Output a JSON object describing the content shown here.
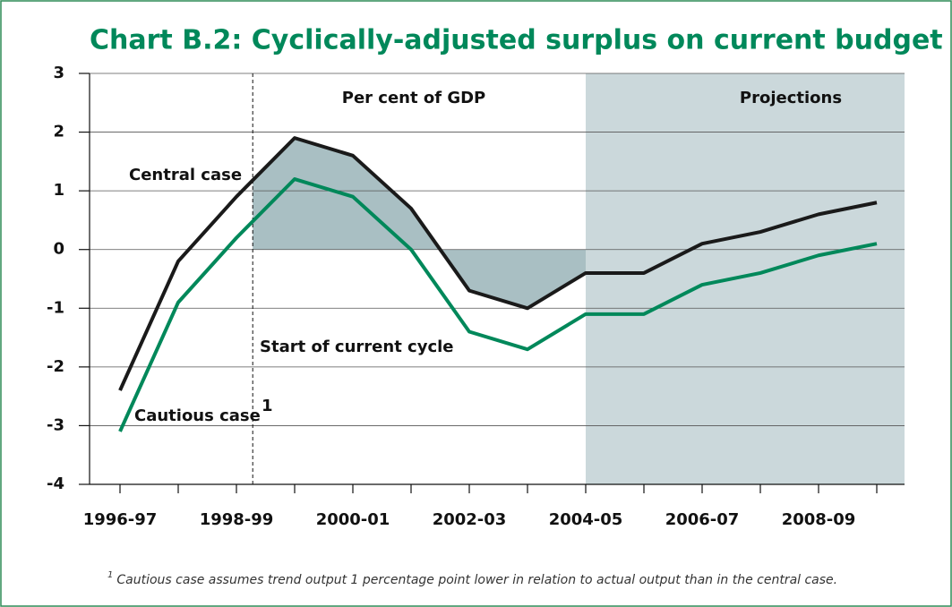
{
  "chart_data": {
    "type": "line",
    "title": "Chart B.2: Cyclically-adjusted surplus on current budget",
    "subtitle": "Per cent of GDP",
    "annotations": {
      "projections": "Projections",
      "cycle": "Start of current cycle",
      "cautious_marker": "1"
    },
    "categories": [
      "1996-97",
      null,
      "1998-99",
      null,
      "2000-01",
      null,
      "2002-03",
      null,
      "2004-05",
      null,
      "2006-07",
      null,
      "2008-09",
      null
    ],
    "series": [
      {
        "name": "Central case",
        "color": "#1a1a1a",
        "values": [
          -2.4,
          -0.2,
          0.9,
          1.9,
          1.6,
          0.7,
          -0.7,
          -1.0,
          -0.4,
          -0.4,
          0.1,
          0.3,
          0.6,
          0.8
        ]
      },
      {
        "name": "Cautious case",
        "color": "#00885a",
        "values": [
          -3.1,
          -0.9,
          0.2,
          1.2,
          0.9,
          0.0,
          -1.4,
          -1.7,
          -1.1,
          -1.1,
          -0.6,
          -0.4,
          -0.1,
          0.1
        ]
      }
    ],
    "ylim": [
      -4,
      3
    ],
    "yticks": [
      -4,
      -3,
      -2,
      -1,
      0,
      1,
      2,
      3
    ],
    "grid": true,
    "footnote": {
      "marker": "1",
      "text": "Cautious case assumes trend output 1 percentage point lower in relation to actual output than in the central case."
    }
  }
}
